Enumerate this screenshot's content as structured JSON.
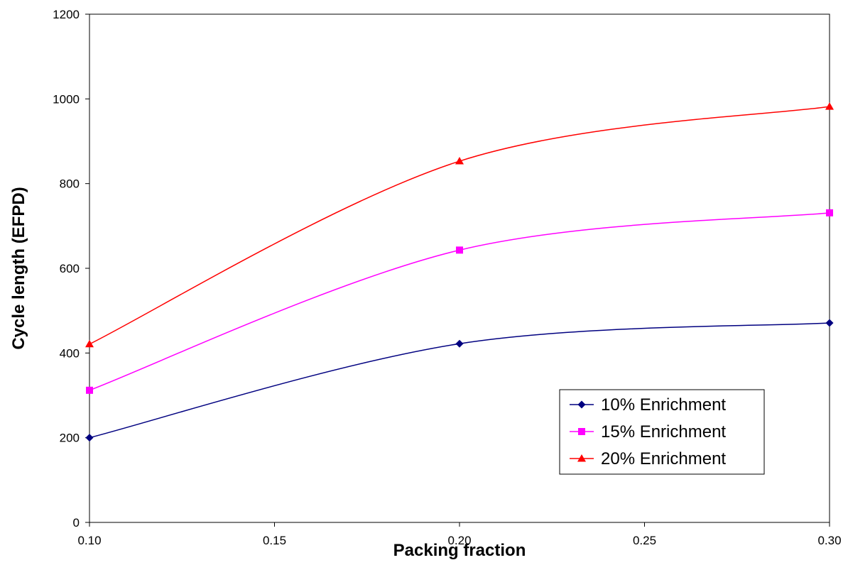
{
  "chart_data": {
    "type": "line",
    "x": [
      0.1,
      0.2,
      0.3
    ],
    "series": [
      {
        "name": "10% Enrichment",
        "values": [
          200,
          422,
          471
        ],
        "color": "#000080",
        "marker": "diamond"
      },
      {
        "name": "15% Enrichment",
        "values": [
          312,
          643,
          731
        ],
        "color": "#ff00ff",
        "marker": "square"
      },
      {
        "name": "20% Enrichment",
        "values": [
          421,
          853,
          982
        ],
        "color": "#ff0000",
        "marker": "triangle"
      }
    ],
    "xlabel": "Packing fraction",
    "ylabel": "Cycle length (EFPD)",
    "xlim": [
      0.1,
      0.3
    ],
    "ylim": [
      0,
      1200
    ],
    "xticks": [
      "0.10",
      "0.15",
      "0.20",
      "0.25",
      "0.30"
    ],
    "yticks": [
      "0",
      "200",
      "400",
      "600",
      "800",
      "1000",
      "1200"
    ],
    "grid": false,
    "smooth": true,
    "legend_position": "bottom-right"
  }
}
